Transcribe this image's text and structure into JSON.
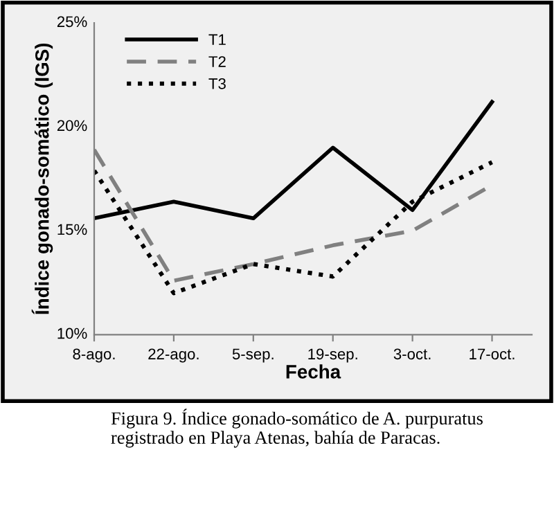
{
  "chart_data": {
    "type": "line",
    "xlabel": "Fecha",
    "ylabel": "Índice gonado-somático (IGS)",
    "categories": [
      "8-ago.",
      "22-ago.",
      "5-sep.",
      "19-sep.",
      "3-oct.",
      "17-oct."
    ],
    "series": [
      {
        "name": "T1",
        "color": "#000000",
        "line_style": "solid",
        "values": [
          15.6,
          16.4,
          15.6,
          19.0,
          16.0,
          21.2
        ]
      },
      {
        "name": "T2",
        "color": "#808080",
        "line_style": "dashed",
        "values": [
          18.9,
          12.6,
          13.4,
          14.3,
          15.0,
          17.2
        ]
      },
      {
        "name": "T3",
        "color": "#000000",
        "line_style": "dotted",
        "values": [
          17.9,
          12.0,
          13.4,
          12.8,
          16.4,
          18.3
        ]
      }
    ],
    "ylim": [
      10,
      25
    ],
    "yticks": [
      {
        "value": 10,
        "label": "10%"
      },
      {
        "value": 15,
        "label": "15%"
      },
      {
        "value": 20,
        "label": "20%"
      },
      {
        "value": 25,
        "label": "25%"
      }
    ],
    "grid": false,
    "legend": "top left",
    "marker": "none",
    "annotations": [
      "Figura 9. Índice gonado-somático de A. purpuratus registrado en Playa Atenas, bahía de Paracas."
    ]
  }
}
